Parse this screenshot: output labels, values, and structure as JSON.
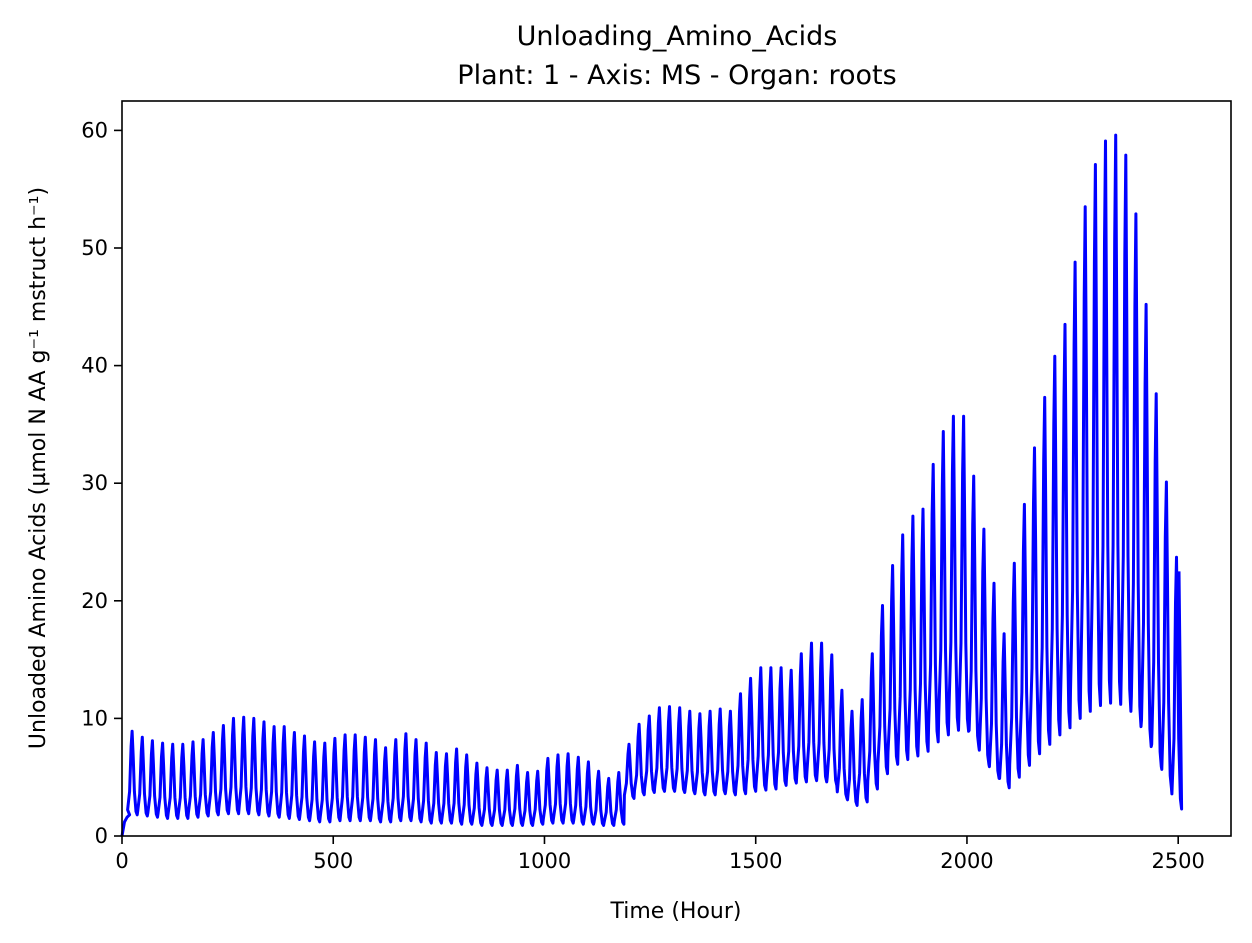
{
  "chart_data": {
    "type": "line",
    "title": "Unloading_Amino_Acids",
    "subtitle": "Plant: 1 - Axis: MS - Organ: roots",
    "xlabel": "Time (Hour)",
    "ylabel": "Unloaded Amino Acids (µmol N AA g⁻¹ mstruct h⁻¹)",
    "xlim": [
      0,
      2625
    ],
    "ylim": [
      0,
      62.5
    ],
    "x_ticks": [
      "0",
      "500",
      "1000",
      "1500",
      "2000",
      "2500"
    ],
    "y_ticks": [
      "0",
      "10",
      "20",
      "30",
      "40",
      "50",
      "60"
    ],
    "grid": false,
    "legend": "none",
    "color": "#0000ff",
    "series": [
      {
        "period_hours": 24,
        "peaks_x": [
          24,
          48,
          72,
          96,
          120,
          144,
          168,
          192,
          216,
          240,
          264,
          288,
          312,
          336,
          360,
          384,
          408,
          432,
          456,
          480,
          504,
          528,
          552,
          576,
          600,
          624,
          648,
          672,
          696,
          720,
          744,
          768,
          792,
          816,
          840,
          864,
          888,
          912,
          936,
          960,
          984,
          1008,
          1032,
          1056,
          1080,
          1104,
          1128,
          1152,
          1176,
          1200,
          1224,
          1248,
          1272,
          1296,
          1320,
          1344,
          1368,
          1392,
          1416,
          1440,
          1464,
          1488,
          1512,
          1536,
          1560,
          1584,
          1608,
          1632,
          1656,
          1680,
          1704,
          1728,
          1752,
          1776,
          1800,
          1824,
          1848,
          1872,
          1896,
          1920,
          1944,
          1968,
          1992,
          2016,
          2040,
          2064,
          2088,
          2112,
          2136,
          2160,
          2184,
          2208,
          2232,
          2256,
          2280,
          2304,
          2328,
          2352,
          2376,
          2400,
          2424,
          2448,
          2472,
          2496
        ],
        "peaks_y": [
          8.9,
          8.4,
          8.1,
          7.9,
          7.8,
          7.8,
          8.0,
          8.2,
          8.8,
          9.4,
          10.0,
          10.1,
          10.0,
          9.7,
          9.3,
          9.3,
          8.8,
          8.5,
          8.0,
          7.9,
          8.3,
          8.6,
          8.6,
          8.4,
          8.2,
          7.5,
          8.2,
          8.7,
          8.2,
          7.9,
          7.1,
          7.0,
          7.4,
          6.9,
          6.2,
          5.8,
          5.6,
          5.6,
          6.0,
          5.4,
          5.5,
          6.6,
          6.9,
          7.0,
          6.7,
          6.3,
          5.5,
          4.9,
          5.4,
          7.8,
          9.5,
          10.2,
          10.9,
          11.0,
          10.9,
          10.6,
          10.4,
          10.6,
          10.8,
          10.6,
          12.1,
          13.4,
          14.3,
          14.3,
          14.3,
          14.1,
          15.5,
          16.4,
          16.4,
          15.4,
          12.4,
          10.6,
          11.6,
          15.5,
          19.6,
          23.0,
          25.6,
          27.2,
          27.8,
          31.6,
          34.4,
          35.7,
          35.7,
          30.6,
          26.1,
          21.5,
          17.2,
          23.2,
          28.2,
          33.0,
          37.3,
          40.8,
          43.5,
          48.8,
          53.5,
          57.1,
          59.1,
          59.6,
          57.9,
          52.9,
          45.2,
          37.6,
          30.1,
          23.7
        ],
        "troughs_y": [
          1.8,
          1.7,
          1.6,
          1.5,
          1.5,
          1.5,
          1.6,
          1.7,
          1.8,
          1.9,
          1.9,
          1.9,
          1.8,
          1.7,
          1.6,
          1.5,
          1.4,
          1.3,
          1.2,
          1.2,
          1.3,
          1.3,
          1.3,
          1.3,
          1.2,
          1.2,
          1.3,
          1.3,
          1.2,
          1.1,
          1.1,
          1.1,
          1.0,
          1.0,
          0.9,
          0.9,
          0.9,
          0.9,
          0.9,
          0.9,
          1.0,
          1.1,
          1.1,
          1.1,
          1.0,
          1.0,
          0.9,
          0.9,
          1.0,
          3.2,
          3.5,
          3.7,
          3.8,
          3.8,
          3.7,
          3.6,
          3.5,
          3.5,
          3.6,
          3.5,
          3.6,
          3.8,
          3.9,
          4.0,
          4.3,
          4.5,
          4.6,
          4.7,
          4.6,
          4.3,
          3.2,
          2.6,
          2.9,
          4.0,
          5.3,
          6.1,
          6.5,
          6.8,
          7.2,
          8.0,
          8.6,
          9.0,
          8.9,
          7.6,
          6.1,
          4.9,
          4.1,
          5.0,
          6.0,
          7.0,
          7.8,
          8.6,
          9.2,
          10.0,
          10.6,
          11.1,
          11.3,
          11.2,
          10.6,
          9.3,
          7.6,
          5.9,
          4.1,
          2.3
        ],
        "start": [
          [
            0,
            0.0
          ],
          [
            6,
            1.2
          ],
          [
            12,
            1.6
          ],
          [
            18,
            1.8
          ]
        ],
        "end": [
          2502,
          22.5
        ]
      }
    ]
  }
}
